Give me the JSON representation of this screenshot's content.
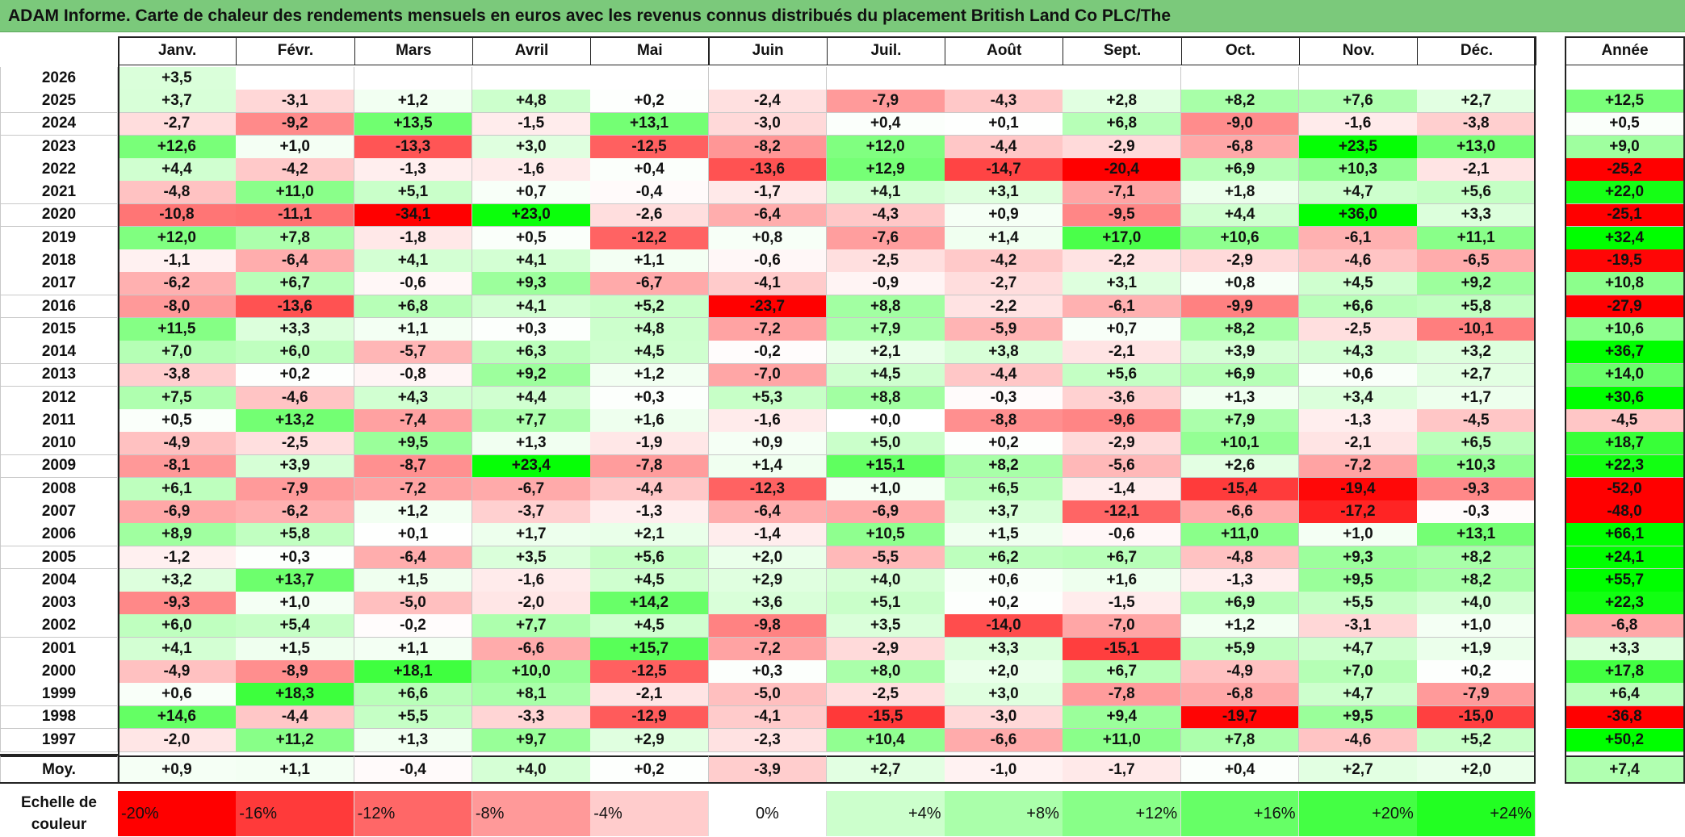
{
  "title": "ADAM Informe. Carte de chaleur des rendements mensuels en euros avec les revenus connus distribués du placement British Land Co PLC/The",
  "chart_data": {
    "type": "heatmap",
    "title": "ADAM Informe. Carte de chaleur des rendements mensuels en euros avec les revenus connus distribués du placement British Land Co PLC/The",
    "columns": [
      "Janv.",
      "Févr.",
      "Mars",
      "Avril",
      "Mai",
      "Juin",
      "Juil.",
      "Août",
      "Sept.",
      "Oct.",
      "Nov.",
      "Déc."
    ],
    "year_header": "Année",
    "average_label": "Moy.",
    "rows": [
      {
        "year": "2026",
        "months": [
          "+3,5",
          "",
          "",
          "",
          "",
          "",
          "",
          "",
          "",
          "",
          "",
          ""
        ],
        "annual": ""
      },
      {
        "year": "2025",
        "months": [
          "+3,7",
          "-3,1",
          "+1,2",
          "+4,8",
          "+0,2",
          "-2,4",
          "-7,9",
          "-4,3",
          "+2,8",
          "+8,2",
          "+7,6",
          "+2,7"
        ],
        "annual": "+12,5"
      },
      {
        "year": "2024",
        "months": [
          "-2,7",
          "-9,2",
          "+13,5",
          "-1,5",
          "+13,1",
          "-3,0",
          "+0,4",
          "+0,1",
          "+6,8",
          "-9,0",
          "-1,6",
          "-3,8"
        ],
        "annual": "+0,5"
      },
      {
        "year": "2023",
        "months": [
          "+12,6",
          "+1,0",
          "-13,3",
          "+3,0",
          "-12,5",
          "-8,2",
          "+12,0",
          "-4,4",
          "-2,9",
          "-6,8",
          "+23,5",
          "+13,0"
        ],
        "annual": "+9,0"
      },
      {
        "year": "2022",
        "months": [
          "+4,4",
          "-4,2",
          "-1,3",
          "-1,6",
          "+0,4",
          "-13,6",
          "+12,9",
          "-14,7",
          "-20,4",
          "+6,9",
          "+10,3",
          "-2,1"
        ],
        "annual": "-25,2"
      },
      {
        "year": "2021",
        "months": [
          "-4,8",
          "+11,0",
          "+5,1",
          "+0,7",
          "-0,4",
          "-1,7",
          "+4,1",
          "+3,1",
          "-7,1",
          "+1,8",
          "+4,7",
          "+5,6"
        ],
        "annual": "+22,0"
      },
      {
        "year": "2020",
        "months": [
          "-10,8",
          "-11,1",
          "-34,1",
          "+23,0",
          "-2,6",
          "-6,4",
          "-4,3",
          "+0,9",
          "-9,5",
          "+4,4",
          "+36,0",
          "+3,3"
        ],
        "annual": "-25,1"
      },
      {
        "year": "2019",
        "months": [
          "+12,0",
          "+7,8",
          "-1,8",
          "+0,5",
          "-12,2",
          "+0,8",
          "-7,6",
          "+1,4",
          "+17,0",
          "+10,6",
          "-6,1",
          "+11,1"
        ],
        "annual": "+32,4"
      },
      {
        "year": "2018",
        "months": [
          "-1,1",
          "-6,4",
          "+4,1",
          "+4,1",
          "+1,1",
          "-0,6",
          "-2,5",
          "-4,2",
          "-2,2",
          "-2,9",
          "-4,6",
          "-6,5"
        ],
        "annual": "-19,5"
      },
      {
        "year": "2017",
        "months": [
          "-6,2",
          "+6,7",
          "-0,6",
          "+9,3",
          "-6,7",
          "-4,1",
          "-0,9",
          "-2,7",
          "+3,1",
          "+0,8",
          "+4,5",
          "+9,2"
        ],
        "annual": "+10,8"
      },
      {
        "year": "2016",
        "months": [
          "-8,0",
          "-13,6",
          "+6,8",
          "+4,1",
          "+5,2",
          "-23,7",
          "+8,8",
          "-2,2",
          "-6,1",
          "-9,9",
          "+6,6",
          "+5,8"
        ],
        "annual": "-27,9"
      },
      {
        "year": "2015",
        "months": [
          "+11,5",
          "+3,3",
          "+1,1",
          "+0,3",
          "+4,8",
          "-7,2",
          "+7,9",
          "-5,9",
          "+0,7",
          "+8,2",
          "-2,5",
          "-10,1"
        ],
        "annual": "+10,6"
      },
      {
        "year": "2014",
        "months": [
          "+7,0",
          "+6,0",
          "-5,7",
          "+6,3",
          "+4,5",
          "-0,2",
          "+2,1",
          "+3,8",
          "-2,1",
          "+3,9",
          "+4,3",
          "+3,2"
        ],
        "annual": "+36,7"
      },
      {
        "year": "2013",
        "months": [
          "-3,8",
          "+0,2",
          "-0,8",
          "+9,2",
          "+1,2",
          "-7,0",
          "+4,5",
          "-4,4",
          "+5,6",
          "+6,9",
          "+0,6",
          "+2,7"
        ],
        "annual": "+14,0"
      },
      {
        "year": "2012",
        "months": [
          "+7,5",
          "-4,6",
          "+4,3",
          "+4,4",
          "+0,3",
          "+5,3",
          "+8,8",
          "-0,3",
          "-3,6",
          "+1,3",
          "+3,4",
          "+1,7"
        ],
        "annual": "+30,6"
      },
      {
        "year": "2011",
        "months": [
          "+0,5",
          "+13,2",
          "-7,4",
          "+7,7",
          "+1,6",
          "-1,6",
          "+0,0",
          "-8,8",
          "-9,6",
          "+7,9",
          "-1,3",
          "-4,5"
        ],
        "annual": "-4,5"
      },
      {
        "year": "2010",
        "months": [
          "-4,9",
          "-2,5",
          "+9,5",
          "+1,3",
          "-1,9",
          "+0,9",
          "+5,0",
          "+0,2",
          "-2,9",
          "+10,1",
          "-2,1",
          "+6,5"
        ],
        "annual": "+18,7"
      },
      {
        "year": "2009",
        "months": [
          "-8,1",
          "+3,9",
          "-8,7",
          "+23,4",
          "-7,8",
          "+1,4",
          "+15,1",
          "+8,2",
          "-5,6",
          "+2,6",
          "-7,2",
          "+10,3"
        ],
        "annual": "+22,3"
      },
      {
        "year": "2008",
        "months": [
          "+6,1",
          "-7,9",
          "-7,2",
          "-6,7",
          "-4,4",
          "-12,3",
          "+1,0",
          "+6,5",
          "-1,4",
          "-15,4",
          "-19,4",
          "-9,3"
        ],
        "annual": "-52,0"
      },
      {
        "year": "2007",
        "months": [
          "-6,9",
          "-6,2",
          "+1,2",
          "-3,7",
          "-1,3",
          "-6,4",
          "-6,9",
          "+3,7",
          "-12,1",
          "-6,6",
          "-17,2",
          "-0,3"
        ],
        "annual": "-48,0"
      },
      {
        "year": "2006",
        "months": [
          "+8,9",
          "+5,8",
          "+0,1",
          "+1,7",
          "+2,1",
          "-1,4",
          "+10,5",
          "+1,5",
          "-0,6",
          "+11,0",
          "+1,0",
          "+13,1"
        ],
        "annual": "+66,1"
      },
      {
        "year": "2005",
        "months": [
          "-1,2",
          "+0,3",
          "-6,4",
          "+3,5",
          "+5,6",
          "+2,0",
          "-5,5",
          "+6,2",
          "+6,7",
          "-4,8",
          "+9,3",
          "+8,2"
        ],
        "annual": "+24,1"
      },
      {
        "year": "2004",
        "months": [
          "+3,2",
          "+13,7",
          "+1,5",
          "-1,6",
          "+4,5",
          "+2,9",
          "+4,0",
          "+0,6",
          "+1,6",
          "-1,3",
          "+9,5",
          "+8,2"
        ],
        "annual": "+55,7"
      },
      {
        "year": "2003",
        "months": [
          "-9,3",
          "+1,0",
          "-5,0",
          "-2,0",
          "+14,2",
          "+3,6",
          "+5,1",
          "+0,2",
          "-1,5",
          "+6,9",
          "+5,5",
          "+4,0"
        ],
        "annual": "+22,3"
      },
      {
        "year": "2002",
        "months": [
          "+6,0",
          "+5,4",
          "-0,2",
          "+7,7",
          "+4,5",
          "-9,8",
          "+3,5",
          "-14,0",
          "-7,0",
          "+1,2",
          "-3,1",
          "+1,0"
        ],
        "annual": "-6,8"
      },
      {
        "year": "2001",
        "months": [
          "+4,1",
          "+1,5",
          "+1,1",
          "-6,6",
          "+15,7",
          "-7,2",
          "-2,9",
          "+3,3",
          "-15,1",
          "+5,9",
          "+4,7",
          "+1,9"
        ],
        "annual": "+3,3"
      },
      {
        "year": "2000",
        "months": [
          "-4,9",
          "-8,9",
          "+18,1",
          "+10,0",
          "-12,5",
          "+0,3",
          "+8,0",
          "+2,0",
          "+6,7",
          "-4,9",
          "+7,0",
          "+0,2"
        ],
        "annual": "+17,8"
      },
      {
        "year": "1999",
        "months": [
          "+0,6",
          "+18,3",
          "+6,6",
          "+8,1",
          "-2,1",
          "-5,0",
          "-2,5",
          "+3,0",
          "-7,8",
          "-6,8",
          "+4,7",
          "-7,9"
        ],
        "annual": "+6,4"
      },
      {
        "year": "1998",
        "months": [
          "+14,6",
          "-4,4",
          "+5,5",
          "-3,3",
          "-12,9",
          "-4,1",
          "-15,5",
          "-3,0",
          "+9,4",
          "-19,7",
          "+9,5",
          "-15,0"
        ],
        "annual": "-36,8"
      },
      {
        "year": "1997",
        "months": [
          "-2,0",
          "+11,2",
          "+1,3",
          "+9,7",
          "+2,9",
          "-2,3",
          "+10,4",
          "-6,6",
          "+11,0",
          "+7,8",
          "-4,6",
          "+5,2"
        ],
        "annual": "+50,2"
      }
    ],
    "averages": {
      "months": [
        "+0,9",
        "+1,1",
        "-0,4",
        "+4,0",
        "+0,2",
        "-3,9",
        "+2,7",
        "-1,0",
        "-1,7",
        "+0,4",
        "+2,7",
        "+2,0"
      ],
      "annual": "+7,4"
    },
    "color_scale": {
      "label": "Echelle de couleur",
      "stops": [
        {
          "label": "-20%",
          "color": "#ff0000"
        },
        {
          "label": "-16%",
          "color": "#ff3a3a"
        },
        {
          "label": "-12%",
          "color": "#ff6767"
        },
        {
          "label": "-8%",
          "color": "#ff9999"
        },
        {
          "label": "-4%",
          "color": "#ffcccc"
        },
        {
          "label": "0%",
          "color": "#ffffff"
        },
        {
          "label": "+4%",
          "color": "#ccffcc"
        },
        {
          "label": "+8%",
          "color": "#aaffaa"
        },
        {
          "label": "+12%",
          "color": "#88ff88"
        },
        {
          "label": "+16%",
          "color": "#66ff66"
        },
        {
          "label": "+20%",
          "color": "#44ff44"
        },
        {
          "label": "+24%",
          "color": "#22ff22"
        }
      ]
    }
  }
}
